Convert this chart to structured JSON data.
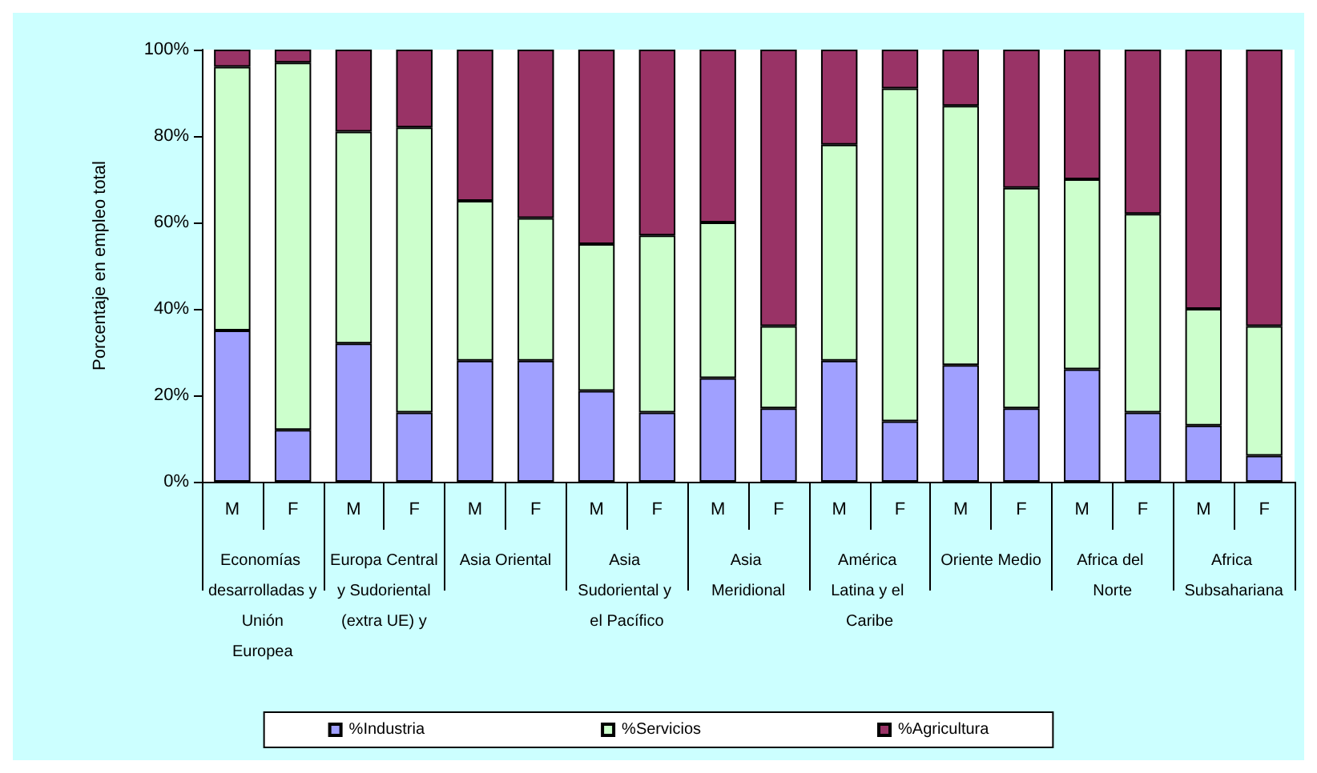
{
  "chart_data": {
    "type": "bar",
    "stacked": true,
    "ylabel": "Porcentaje en empleo total",
    "categories": [
      "M",
      "F",
      "M",
      "F",
      "M",
      "F",
      "M",
      "F",
      "M",
      "F",
      "M",
      "F",
      "M",
      "F",
      "M",
      "F",
      "M",
      "F"
    ],
    "annotations": [
      "Economías desarrolladas y Unión Europea",
      "Europa Central y Sudoriental (extra UE) y",
      "Asia Oriental",
      "Asia Sudoriental y el Pacífico",
      "Asia Meridional",
      "América Latina y el Caribe",
      "Oriente Medio",
      "Africa del Norte",
      "Africa Subsahariana"
    ],
    "series": [
      {
        "name": "%Industria",
        "color": "#a0a0ff",
        "values": [
          35,
          12,
          32,
          16,
          28,
          28,
          21,
          16,
          24,
          17,
          28,
          14,
          27,
          17,
          26,
          16,
          13,
          6
        ]
      },
      {
        "name": "%Servicios",
        "color": "#ccffcc",
        "values": [
          61,
          85,
          49,
          66,
          37,
          33,
          34,
          41,
          36,
          19,
          50,
          77,
          60,
          51,
          44,
          46,
          27,
          30
        ]
      },
      {
        "name": "%Agricultura",
        "color": "#993366",
        "values": [
          4,
          3,
          19,
          18,
          35,
          39,
          45,
          43,
          40,
          64,
          22,
          9,
          13,
          32,
          30,
          38,
          60,
          64
        ]
      }
    ],
    "ylim": [
      0,
      100
    ],
    "yticks": [
      {
        "value": 0,
        "label": "0%"
      },
      {
        "value": 20,
        "label": "20%"
      },
      {
        "value": 40,
        "label": "40%"
      },
      {
        "value": 60,
        "label": "60%"
      },
      {
        "value": 80,
        "label": "80%"
      },
      {
        "value": 100,
        "label": "100%"
      }
    ],
    "grid": false,
    "legend": "bottom"
  }
}
